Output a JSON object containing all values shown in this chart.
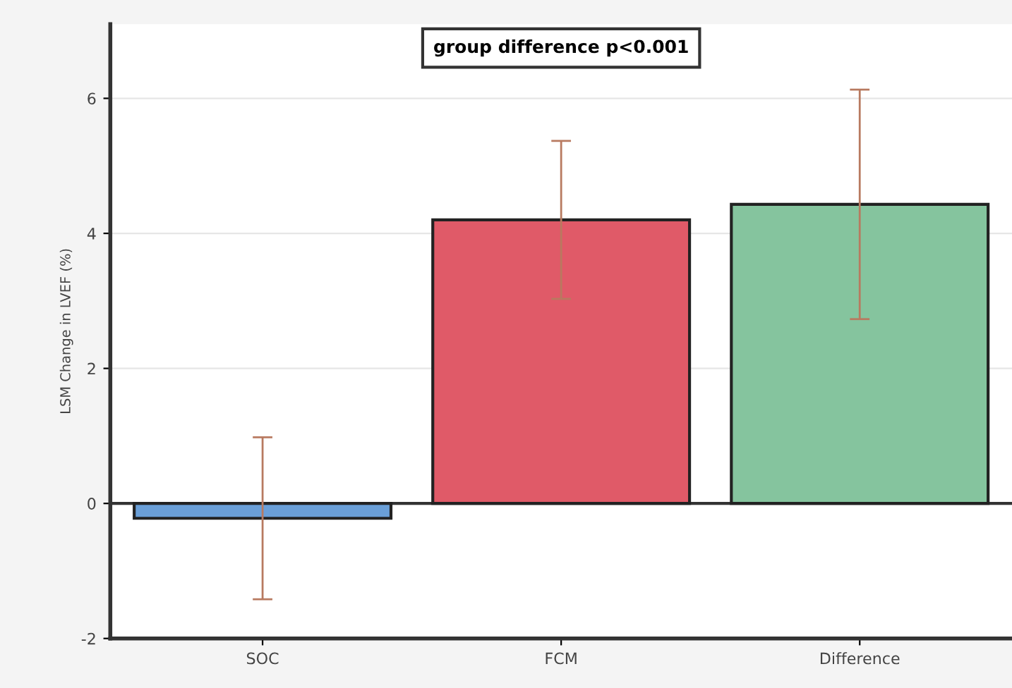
{
  "chart_data": {
    "type": "bar",
    "title": "group difference p<0.001",
    "ylabel": "LSM Change in LVEF (%)",
    "categories": [
      "SOC",
      "FCM",
      "Difference"
    ],
    "values": [
      -0.22,
      4.2,
      4.43
    ],
    "colors": [
      "#6a9fd8",
      "#e05a68",
      "#85c49e"
    ],
    "errors": [
      1.2,
      1.17,
      1.7
    ],
    "ylim": [
      -2,
      7.1
    ],
    "yticks": [
      -2,
      0,
      2,
      4,
      6
    ],
    "grid": "y"
  }
}
